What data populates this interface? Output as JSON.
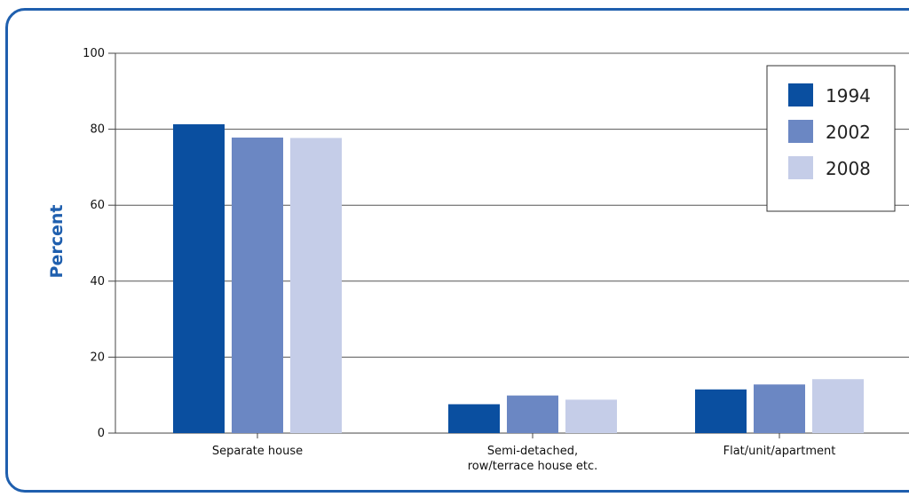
{
  "chart_data": {
    "type": "bar",
    "title": "",
    "xlabel": "",
    "ylabel": "Percent",
    "ylim": [
      0,
      100
    ],
    "yticks": [
      0,
      20,
      40,
      60,
      80,
      100
    ],
    "grid": true,
    "legend_position": "top-right",
    "categories": [
      "Separate house",
      "Semi-detached,\nrow/terrace house etc.",
      "Flat/unit/apartment"
    ],
    "series": [
      {
        "name": "1994",
        "color": "#0a4fa0",
        "values": [
          81.3,
          7.6,
          11.5
        ]
      },
      {
        "name": "2002",
        "color": "#6b87c3",
        "values": [
          77.8,
          9.9,
          12.8
        ]
      },
      {
        "name": "2008",
        "color": "#c5cde8",
        "values": [
          77.7,
          8.8,
          14.2
        ]
      }
    ],
    "colors": {
      "frame": "#1f5fae",
      "ylabel": "#1f5fae",
      "axis": "#444444",
      "grid": "#555555"
    }
  }
}
